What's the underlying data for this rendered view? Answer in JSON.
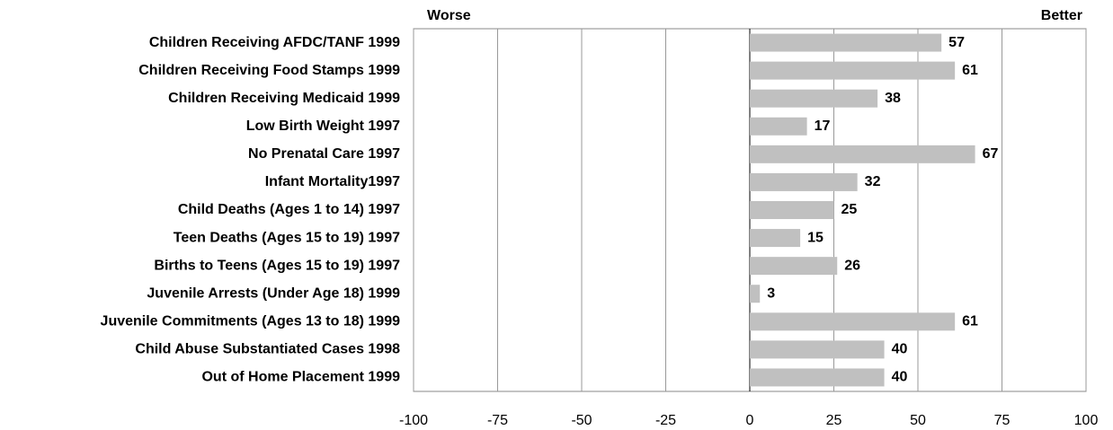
{
  "chart_data": {
    "type": "barh",
    "annotations": [
      "Worse",
      "Better"
    ],
    "categories": [
      "Children Receiving AFDC/TANF 1999",
      "Children Receiving Food Stamps 1999",
      "Children Receiving Medicaid 1999",
      "Low Birth Weight 1997",
      "No Prenatal Care 1997",
      "Infant Mortality1997",
      "Child Deaths (Ages 1 to 14) 1997",
      "Teen Deaths (Ages 15 to 19) 1997",
      "Births to Teens (Ages 15 to 19) 1997",
      "Juvenile Arrests (Under Age 18) 1999",
      "Juvenile Commitments (Ages 13 to 18) 1999",
      "Child Abuse Substantiated Cases 1998",
      "Out of Home Placement 1999"
    ],
    "values": [
      57,
      61,
      38,
      17,
      67,
      32,
      25,
      15,
      26,
      3,
      61,
      40,
      40
    ],
    "color": "#c0c0c0",
    "xlim": [
      -100,
      100
    ],
    "xticks": [
      -100,
      -75,
      -50,
      -25,
      0,
      25,
      50,
      75,
      100
    ],
    "grid": true
  }
}
